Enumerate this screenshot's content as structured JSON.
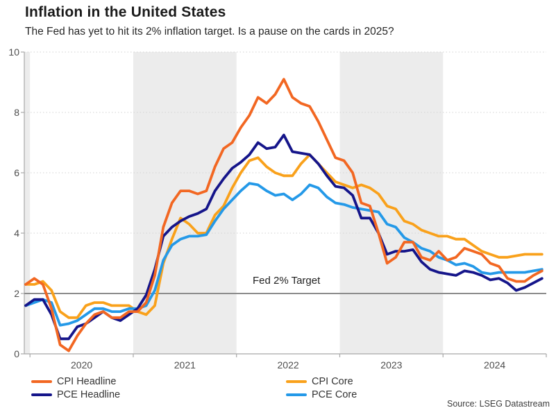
{
  "chart_data": {
    "type": "line",
    "title": "Inflation in the United States",
    "subtitle": "The Fed has yet to hit its 2% inflation target. Is a pause on the cards in 2025?",
    "x_unit": "month",
    "x_start": "2019-12",
    "x_end": "2024-12",
    "x_tick_labels": [
      "2020",
      "2021",
      "2022",
      "2023",
      "2024"
    ],
    "y_ticks": [
      "0",
      "2",
      "4",
      "6",
      "8",
      "10"
    ],
    "ylim": [
      0,
      10
    ],
    "grid": "dotted-horizontal",
    "shaded_year_bands": [
      2019,
      2021,
      2023
    ],
    "band_color": "#ececec",
    "annotation": {
      "label": "Fed 2% Target",
      "value": 2,
      "line_color": "#8c8c8c"
    },
    "series": [
      {
        "name": "CPI Headline",
        "color": "#f26722",
        "values": [
          2.3,
          2.5,
          2.3,
          1.5,
          0.3,
          0.1,
          0.6,
          1.0,
          1.3,
          1.4,
          1.2,
          1.2,
          1.4,
          1.4,
          1.7,
          2.6,
          4.2,
          5.0,
          5.4,
          5.4,
          5.3,
          5.4,
          6.2,
          6.8,
          7.0,
          7.5,
          7.9,
          8.5,
          8.3,
          8.6,
          9.1,
          8.5,
          8.3,
          8.2,
          7.7,
          7.1,
          6.5,
          6.4,
          6.0,
          5.0,
          4.9,
          4.0,
          3.0,
          3.2,
          3.7,
          3.7,
          3.2,
          3.1,
          3.4,
          3.1,
          3.2,
          3.5,
          3.4,
          3.3,
          3.0,
          2.9,
          2.5,
          2.4,
          2.4,
          2.6,
          2.75
        ]
      },
      {
        "name": "PCE Headline",
        "color": "#15158a",
        "values": [
          1.6,
          1.8,
          1.8,
          1.3,
          0.5,
          0.5,
          0.9,
          1.0,
          1.2,
          1.4,
          1.2,
          1.1,
          1.3,
          1.5,
          1.95,
          2.8,
          3.9,
          4.2,
          4.4,
          4.55,
          4.65,
          4.8,
          5.4,
          5.8,
          6.15,
          6.35,
          6.6,
          7.0,
          6.8,
          6.85,
          7.25,
          6.7,
          6.65,
          6.6,
          6.3,
          5.9,
          5.55,
          5.5,
          5.25,
          4.5,
          4.5,
          4.0,
          3.3,
          3.4,
          3.4,
          3.45,
          3.05,
          2.8,
          2.7,
          2.65,
          2.6,
          2.75,
          2.7,
          2.6,
          2.45,
          2.5,
          2.35,
          2.1,
          2.2,
          2.35,
          2.5
        ]
      },
      {
        "name": "CPI Core",
        "color": "#f9a11b",
        "values": [
          2.3,
          2.3,
          2.4,
          2.1,
          1.4,
          1.2,
          1.2,
          1.6,
          1.7,
          1.7,
          1.6,
          1.6,
          1.6,
          1.4,
          1.3,
          1.6,
          3.0,
          3.8,
          4.5,
          4.3,
          4.0,
          4.0,
          4.6,
          4.9,
          5.5,
          6.0,
          6.4,
          6.5,
          6.2,
          6.0,
          5.9,
          5.9,
          6.3,
          6.6,
          6.3,
          6.0,
          5.7,
          5.6,
          5.5,
          5.6,
          5.5,
          5.3,
          4.9,
          4.8,
          4.4,
          4.3,
          4.1,
          4.0,
          3.9,
          3.9,
          3.8,
          3.8,
          3.6,
          3.4,
          3.3,
          3.2,
          3.2,
          3.25,
          3.3,
          3.3,
          3.3
        ]
      },
      {
        "name": "PCE Core",
        "color": "#2499e8",
        "values": [
          1.6,
          1.7,
          1.8,
          1.7,
          0.95,
          1.0,
          1.1,
          1.3,
          1.5,
          1.5,
          1.4,
          1.4,
          1.5,
          1.5,
          1.6,
          2.1,
          3.1,
          3.6,
          3.8,
          3.9,
          3.9,
          3.95,
          4.4,
          4.8,
          5.1,
          5.4,
          5.65,
          5.6,
          5.4,
          5.25,
          5.3,
          5.1,
          5.3,
          5.6,
          5.5,
          5.2,
          5.0,
          4.95,
          4.85,
          4.8,
          4.75,
          4.7,
          4.3,
          4.2,
          3.85,
          3.7,
          3.5,
          3.4,
          3.2,
          3.1,
          2.95,
          3.0,
          2.9,
          2.7,
          2.65,
          2.7,
          2.7,
          2.7,
          2.7,
          2.75,
          2.8
        ]
      }
    ]
  },
  "legend": {
    "items": [
      {
        "label": "CPI Headline",
        "color": "#f26722"
      },
      {
        "label": "PCE Headline",
        "color": "#15158a"
      },
      {
        "label": "CPI Core",
        "color": "#f9a11b"
      },
      {
        "label": "PCE Core",
        "color": "#2499e8"
      }
    ]
  },
  "footer": {
    "source": "Source: LSEG Datastream"
  }
}
